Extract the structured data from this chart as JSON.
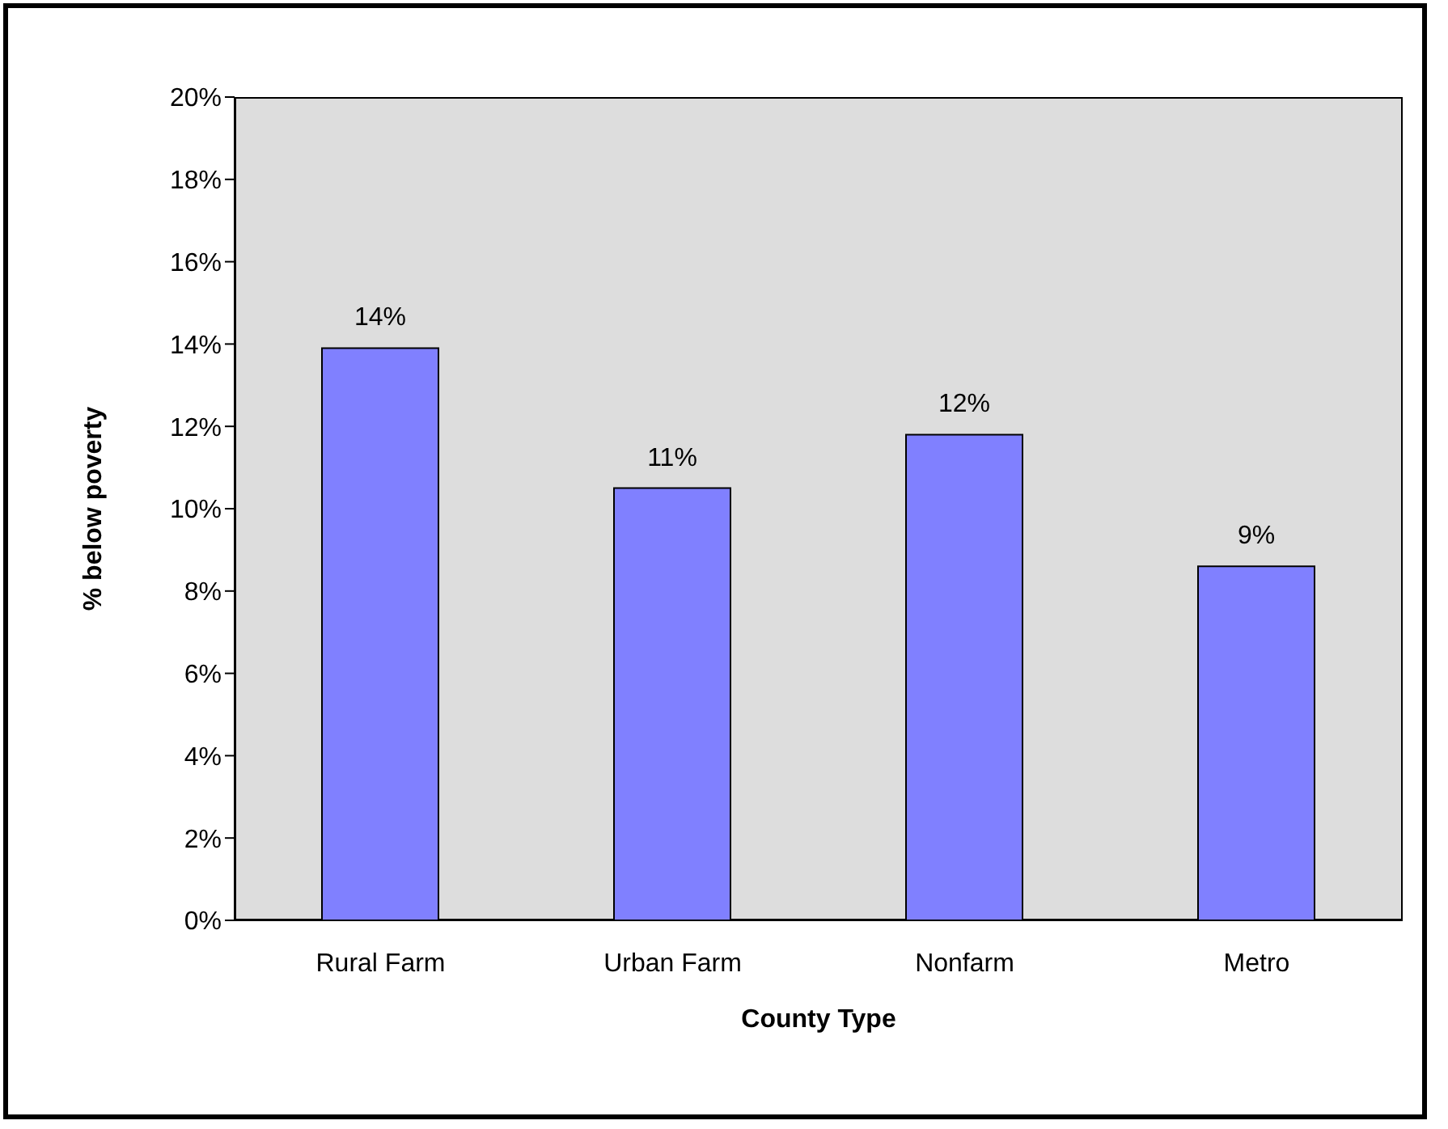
{
  "chart_data": {
    "type": "bar",
    "xlabel": "County Type",
    "ylabel": "% below poverty",
    "categories": [
      "Rural Farm",
      "Urban Farm",
      "Nonfarm",
      "Metro"
    ],
    "values": [
      13.9,
      10.5,
      11.8,
      8.6
    ],
    "value_labels": [
      "14%",
      "11%",
      "12%",
      "9%"
    ],
    "color": "#8080ff",
    "ylim": [
      0,
      20
    ],
    "yticks": [
      {
        "value": 0,
        "label": "0%"
      },
      {
        "value": 2,
        "label": "2%"
      },
      {
        "value": 4,
        "label": "4%"
      },
      {
        "value": 6,
        "label": "6%"
      },
      {
        "value": 8,
        "label": "8%"
      },
      {
        "value": 10,
        "label": "10%"
      },
      {
        "value": 12,
        "label": "12%"
      },
      {
        "value": 14,
        "label": "14%"
      },
      {
        "value": 16,
        "label": "16%"
      },
      {
        "value": 18,
        "label": "18%"
      },
      {
        "value": 20,
        "label": "20%"
      }
    ],
    "grid": false,
    "legend": false
  }
}
